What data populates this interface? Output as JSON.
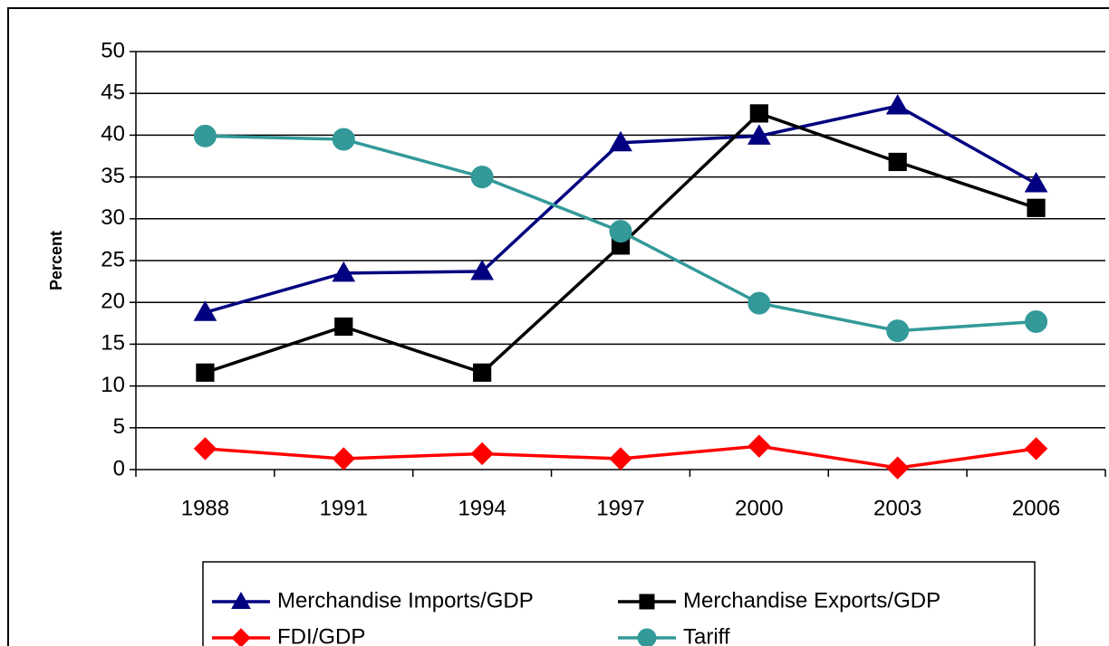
{
  "chart_data": {
    "type": "line",
    "categories": [
      "1988",
      "1991",
      "1994",
      "1997",
      "2000",
      "2003",
      "2006"
    ],
    "y_label": "Percent",
    "ylim": [
      0,
      50
    ],
    "yticks": [
      0,
      5,
      10,
      15,
      20,
      25,
      30,
      35,
      40,
      45,
      50
    ],
    "grid": true,
    "legend": "bottom",
    "series": [
      {
        "name": "Merchandise Imports/GDP",
        "color": "#000080",
        "marker": "triangle",
        "values": [
          18.8,
          23.5,
          23.7,
          39.1,
          39.9,
          43.5,
          34.2
        ]
      },
      {
        "name": "Merchandise Exports/GDP",
        "color": "#000000",
        "marker": "square",
        "values": [
          11.6,
          17.1,
          11.6,
          26.8,
          42.6,
          36.8,
          31.3
        ]
      },
      {
        "name": "FDI/GDP",
        "color": "#ff0000",
        "marker": "diamond",
        "values": [
          2.5,
          1.3,
          1.9,
          1.3,
          2.8,
          0.2,
          2.5
        ]
      },
      {
        "name": "Tariff",
        "color": "#339999",
        "marker": "circle",
        "values": [
          39.9,
          39.5,
          35.0,
          28.5,
          19.9,
          16.6,
          17.7
        ]
      }
    ]
  }
}
